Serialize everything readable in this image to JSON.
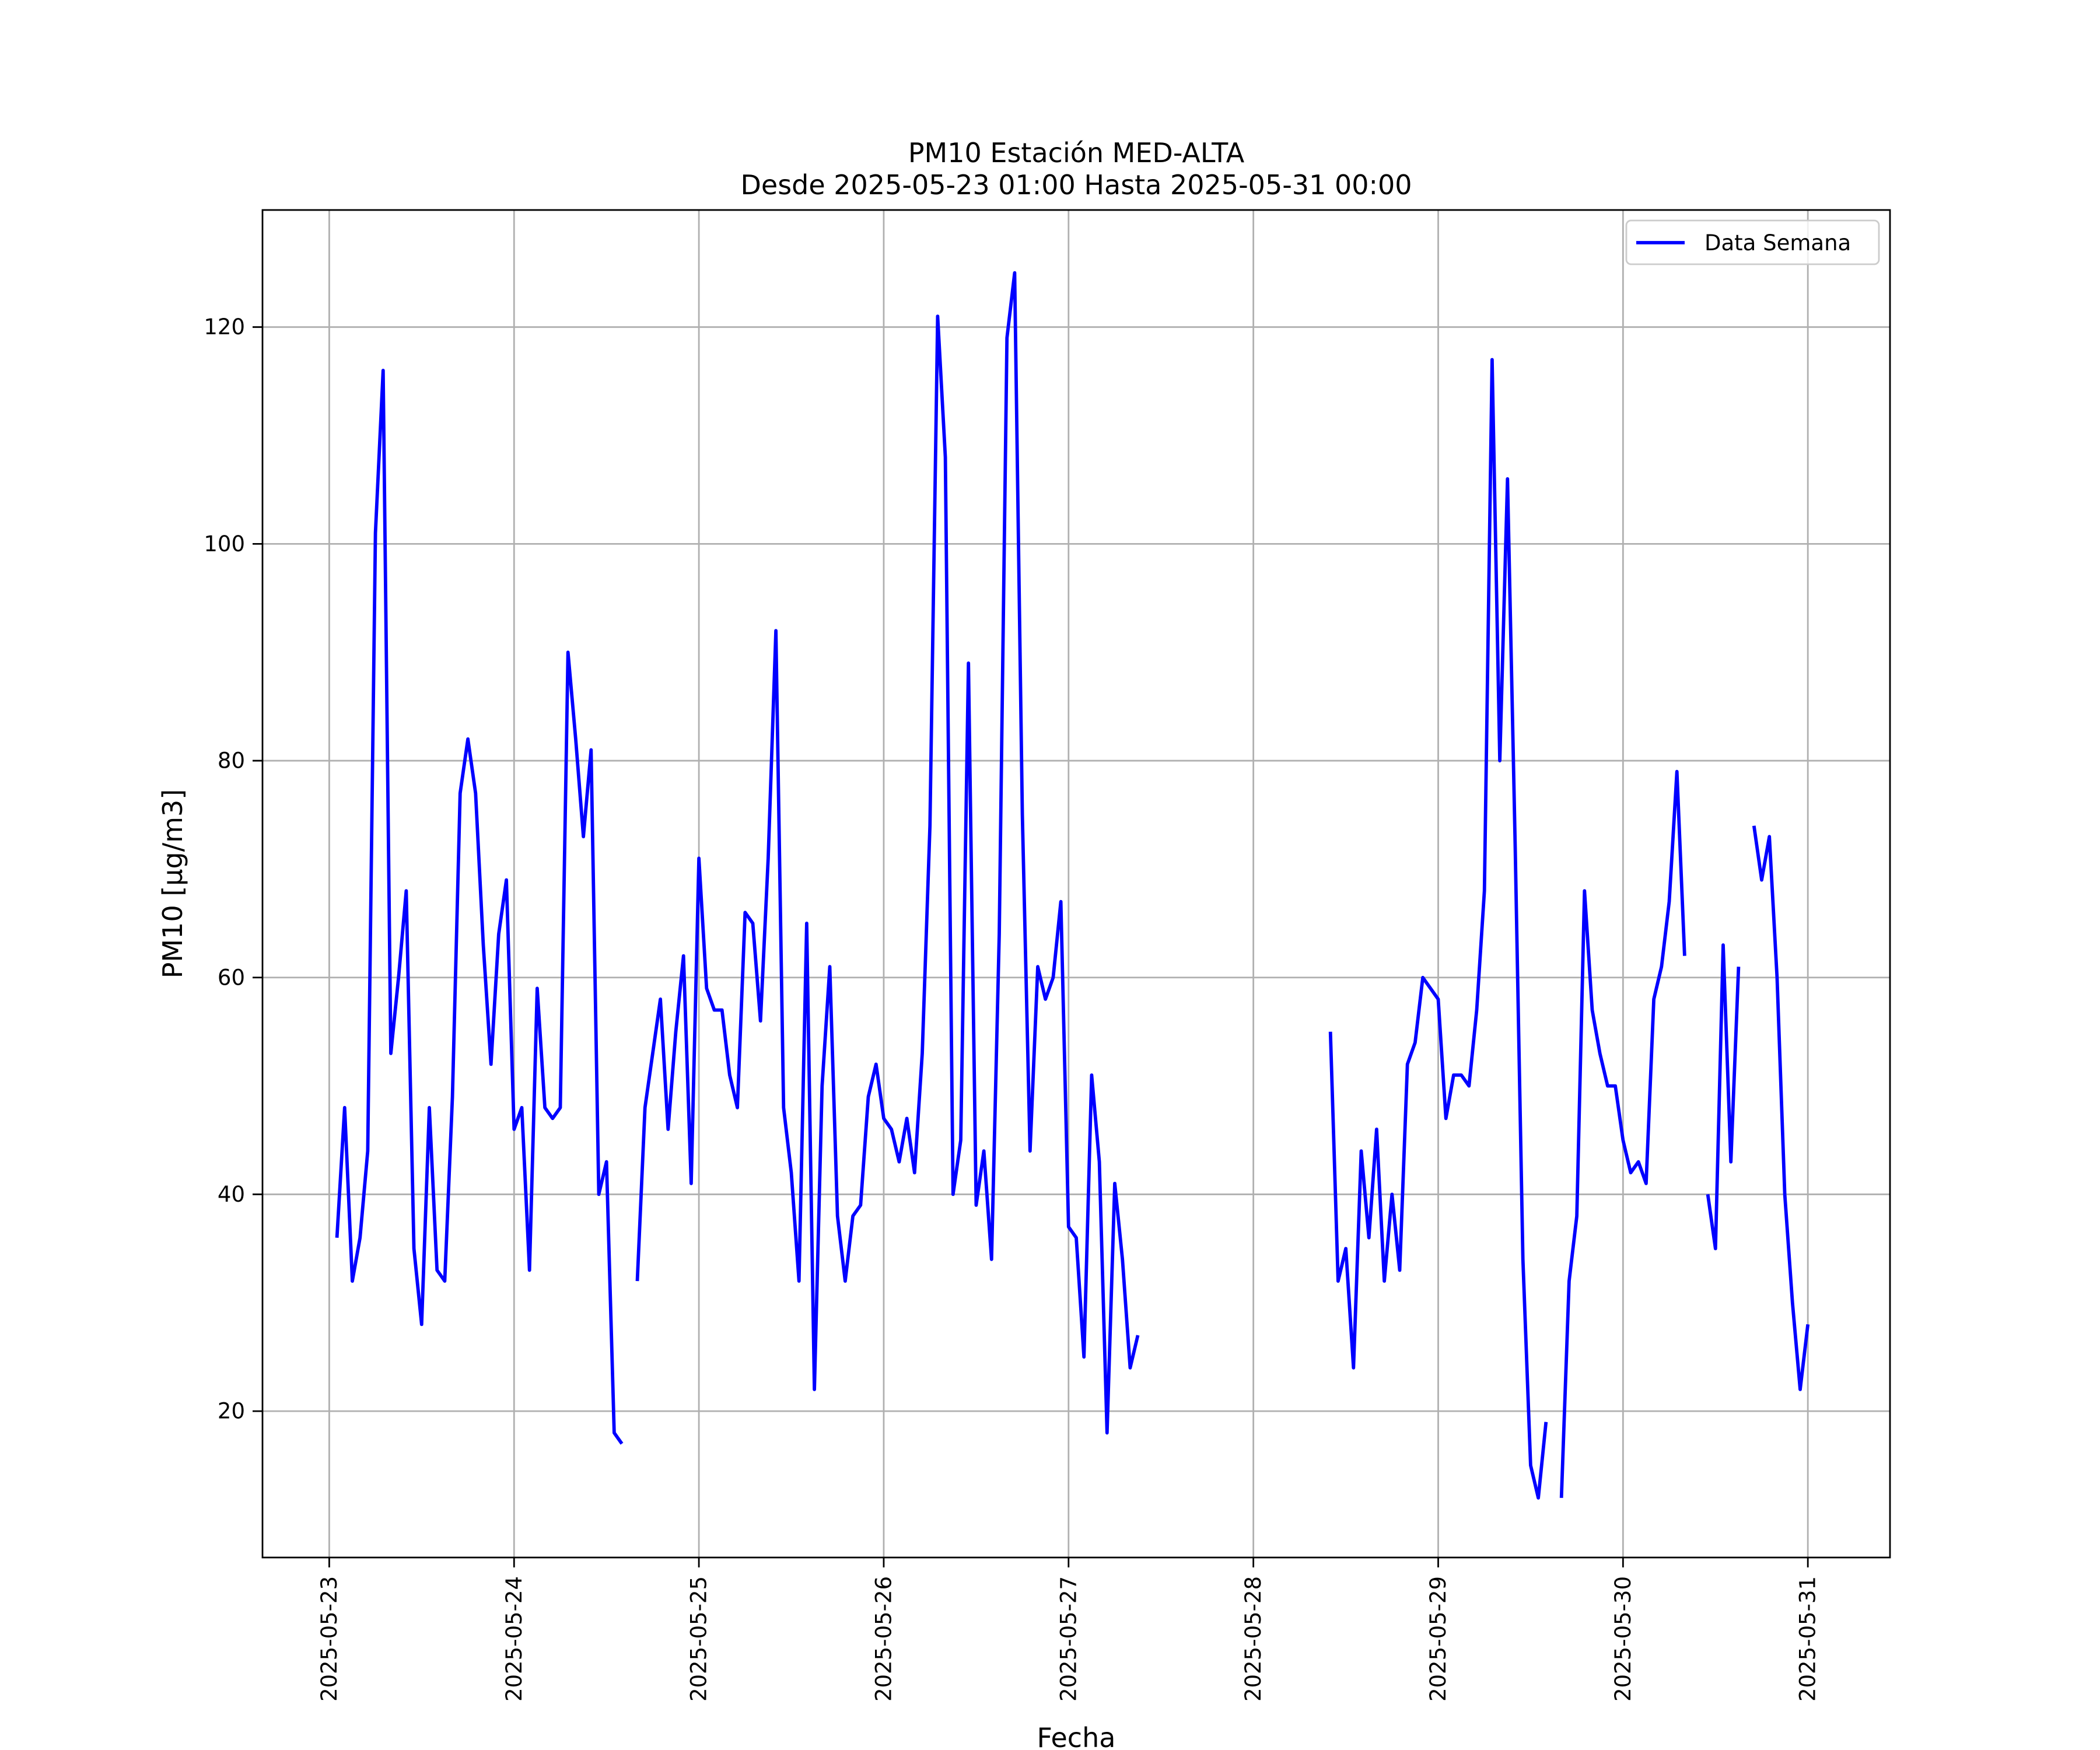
{
  "chart_data": {
    "type": "line",
    "title": "PM10 Estación MED-ALTA",
    "subtitle": "Desde 2025-05-23 01:00 Hasta 2025-05-31 00:00",
    "xlabel": "Fecha",
    "ylabel": "PM10 [μg/m3]",
    "xlim": [
      "2025-05-22 15:20",
      "2025-05-31 10:40"
    ],
    "ylim": [
      6.5,
      130.8
    ],
    "x_ticks": [
      "2025-05-23",
      "2025-05-24",
      "2025-05-25",
      "2025-05-26",
      "2025-05-27",
      "2025-05-28",
      "2025-05-29",
      "2025-05-30",
      "2025-05-31"
    ],
    "y_ticks": [
      20,
      40,
      60,
      80,
      100,
      120
    ],
    "grid": true,
    "legend_position": "top-right",
    "colors": {
      "series": "#0000ff",
      "grid": "#b0b0b0"
    },
    "series": [
      {
        "name": "Data Semana",
        "color": "#0000ff",
        "points": [
          [
            "2025-05-23 01:00",
            36
          ],
          [
            "2025-05-23 02:00",
            48
          ],
          [
            "2025-05-23 03:00",
            32
          ],
          [
            "2025-05-23 04:00",
            36
          ],
          [
            "2025-05-23 05:00",
            44
          ],
          [
            "2025-05-23 06:00",
            101
          ],
          [
            "2025-05-23 07:00",
            116
          ],
          [
            "2025-05-23 08:00",
            53
          ],
          [
            "2025-05-23 09:00",
            60
          ],
          [
            "2025-05-23 10:00",
            68
          ],
          [
            "2025-05-23 11:00",
            35
          ],
          [
            "2025-05-23 12:00",
            28
          ],
          [
            "2025-05-23 13:00",
            48
          ],
          [
            "2025-05-23 14:00",
            33
          ],
          [
            "2025-05-23 15:00",
            32
          ],
          [
            "2025-05-23 16:00",
            49
          ],
          [
            "2025-05-23 17:00",
            77
          ],
          [
            "2025-05-23 18:00",
            82
          ],
          [
            "2025-05-23 19:00",
            77
          ],
          [
            "2025-05-23 20:00",
            63
          ],
          [
            "2025-05-23 21:00",
            52
          ],
          [
            "2025-05-23 22:00",
            64
          ],
          [
            "2025-05-23 23:00",
            69
          ],
          [
            "2025-05-24 00:00",
            46
          ],
          [
            "2025-05-24 01:00",
            48
          ],
          [
            "2025-05-24 02:00",
            33
          ],
          [
            "2025-05-24 03:00",
            59
          ],
          [
            "2025-05-24 04:00",
            48
          ],
          [
            "2025-05-24 05:00",
            47
          ],
          [
            "2025-05-24 06:00",
            48
          ],
          [
            "2025-05-24 07:00",
            90
          ],
          [
            "2025-05-24 08:00",
            82
          ],
          [
            "2025-05-24 09:00",
            73
          ],
          [
            "2025-05-24 10:00",
            81
          ],
          [
            "2025-05-24 11:00",
            40
          ],
          [
            "2025-05-24 12:00",
            43
          ],
          [
            "2025-05-24 13:00",
            18
          ],
          [
            "2025-05-24 14:00",
            17
          ],
          [
            "2025-05-24 15:00",
            null
          ],
          [
            "2025-05-24 16:00",
            32
          ],
          [
            "2025-05-24 17:00",
            48
          ],
          [
            "2025-05-24 18:00",
            53
          ],
          [
            "2025-05-24 19:00",
            58
          ],
          [
            "2025-05-24 20:00",
            46
          ],
          [
            "2025-05-24 21:00",
            55
          ],
          [
            "2025-05-24 22:00",
            62
          ],
          [
            "2025-05-24 23:00",
            41
          ],
          [
            "2025-05-25 00:00",
            71
          ],
          [
            "2025-05-25 01:00",
            59
          ],
          [
            "2025-05-25 02:00",
            57
          ],
          [
            "2025-05-25 03:00",
            57
          ],
          [
            "2025-05-25 04:00",
            51
          ],
          [
            "2025-05-25 05:00",
            48
          ],
          [
            "2025-05-25 06:00",
            66
          ],
          [
            "2025-05-25 07:00",
            65
          ],
          [
            "2025-05-25 08:00",
            56
          ],
          [
            "2025-05-25 09:00",
            71
          ],
          [
            "2025-05-25 10:00",
            92
          ],
          [
            "2025-05-25 11:00",
            48
          ],
          [
            "2025-05-25 12:00",
            42
          ],
          [
            "2025-05-25 13:00",
            32
          ],
          [
            "2025-05-25 14:00",
            65
          ],
          [
            "2025-05-25 15:00",
            22
          ],
          [
            "2025-05-25 16:00",
            50
          ],
          [
            "2025-05-25 17:00",
            61
          ],
          [
            "2025-05-25 18:00",
            38
          ],
          [
            "2025-05-25 19:00",
            32
          ],
          [
            "2025-05-25 20:00",
            38
          ],
          [
            "2025-05-25 21:00",
            39
          ],
          [
            "2025-05-25 22:00",
            49
          ],
          [
            "2025-05-25 23:00",
            52
          ],
          [
            "2025-05-26 00:00",
            47
          ],
          [
            "2025-05-26 01:00",
            46
          ],
          [
            "2025-05-26 02:00",
            43
          ],
          [
            "2025-05-26 03:00",
            47
          ],
          [
            "2025-05-26 04:00",
            42
          ],
          [
            "2025-05-26 05:00",
            53
          ],
          [
            "2025-05-26 06:00",
            74
          ],
          [
            "2025-05-26 07:00",
            121
          ],
          [
            "2025-05-26 08:00",
            108
          ],
          [
            "2025-05-26 09:00",
            40
          ],
          [
            "2025-05-26 10:00",
            45
          ],
          [
            "2025-05-26 11:00",
            89
          ],
          [
            "2025-05-26 12:00",
            39
          ],
          [
            "2025-05-26 13:00",
            44
          ],
          [
            "2025-05-26 14:00",
            34
          ],
          [
            "2025-05-26 15:00",
            64
          ],
          [
            "2025-05-26 16:00",
            119
          ],
          [
            "2025-05-26 17:00",
            125
          ],
          [
            "2025-05-26 18:00",
            75
          ],
          [
            "2025-05-26 19:00",
            44
          ],
          [
            "2025-05-26 20:00",
            61
          ],
          [
            "2025-05-26 21:00",
            58
          ],
          [
            "2025-05-26 22:00",
            60
          ],
          [
            "2025-05-26 23:00",
            67
          ],
          [
            "2025-05-27 00:00",
            37
          ],
          [
            "2025-05-27 01:00",
            36
          ],
          [
            "2025-05-27 02:00",
            25
          ],
          [
            "2025-05-27 03:00",
            51
          ],
          [
            "2025-05-27 04:00",
            43
          ],
          [
            "2025-05-27 05:00",
            18
          ],
          [
            "2025-05-27 06:00",
            41
          ],
          [
            "2025-05-27 07:00",
            34
          ],
          [
            "2025-05-27 08:00",
            24
          ],
          [
            "2025-05-27 09:00",
            27
          ],
          [
            "2025-05-27 10:00",
            null
          ],
          [
            "2025-05-28 10:00",
            55
          ],
          [
            "2025-05-28 11:00",
            32
          ],
          [
            "2025-05-28 12:00",
            35
          ],
          [
            "2025-05-28 13:00",
            24
          ],
          [
            "2025-05-28 14:00",
            44
          ],
          [
            "2025-05-28 15:00",
            36
          ],
          [
            "2025-05-28 16:00",
            46
          ],
          [
            "2025-05-28 17:00",
            32
          ],
          [
            "2025-05-28 18:00",
            40
          ],
          [
            "2025-05-28 19:00",
            33
          ],
          [
            "2025-05-28 20:00",
            52
          ],
          [
            "2025-05-28 21:00",
            54
          ],
          [
            "2025-05-28 22:00",
            60
          ],
          [
            "2025-05-28 23:00",
            59
          ],
          [
            "2025-05-29 00:00",
            58
          ],
          [
            "2025-05-29 01:00",
            47
          ],
          [
            "2025-05-29 02:00",
            51
          ],
          [
            "2025-05-29 03:00",
            51
          ],
          [
            "2025-05-29 04:00",
            50
          ],
          [
            "2025-05-29 05:00",
            57
          ],
          [
            "2025-05-29 06:00",
            68
          ],
          [
            "2025-05-29 07:00",
            117
          ],
          [
            "2025-05-29 08:00",
            80
          ],
          [
            "2025-05-29 09:00",
            106
          ],
          [
            "2025-05-29 10:00",
            72
          ],
          [
            "2025-05-29 11:00",
            34
          ],
          [
            "2025-05-29 12:00",
            15
          ],
          [
            "2025-05-29 13:00",
            12
          ],
          [
            "2025-05-29 14:00",
            19
          ],
          [
            "2025-05-29 15:00",
            null
          ],
          [
            "2025-05-29 16:00",
            12
          ],
          [
            "2025-05-29 17:00",
            32
          ],
          [
            "2025-05-29 18:00",
            38
          ],
          [
            "2025-05-29 19:00",
            68
          ],
          [
            "2025-05-29 20:00",
            57
          ],
          [
            "2025-05-29 21:00",
            53
          ],
          [
            "2025-05-29 22:00",
            50
          ],
          [
            "2025-05-29 23:00",
            50
          ],
          [
            "2025-05-30 00:00",
            45
          ],
          [
            "2025-05-30 01:00",
            42
          ],
          [
            "2025-05-30 02:00",
            43
          ],
          [
            "2025-05-30 03:00",
            41
          ],
          [
            "2025-05-30 04:00",
            58
          ],
          [
            "2025-05-30 05:00",
            61
          ],
          [
            "2025-05-30 06:00",
            67
          ],
          [
            "2025-05-30 07:00",
            79
          ],
          [
            "2025-05-30 08:00",
            62
          ],
          [
            "2025-05-30 09:00",
            null
          ],
          [
            "2025-05-30 11:00",
            40
          ],
          [
            "2025-05-30 12:00",
            35
          ],
          [
            "2025-05-30 13:00",
            63
          ],
          [
            "2025-05-30 14:00",
            43
          ],
          [
            "2025-05-30 15:00",
            61
          ],
          [
            "2025-05-30 16:00",
            null
          ],
          [
            "2025-05-30 17:00",
            74
          ],
          [
            "2025-05-30 18:00",
            69
          ],
          [
            "2025-05-30 19:00",
            73
          ],
          [
            "2025-05-30 20:00",
            60
          ],
          [
            "2025-05-30 21:00",
            40
          ],
          [
            "2025-05-30 22:00",
            30
          ],
          [
            "2025-05-30 23:00",
            22
          ],
          [
            "2025-05-31 00:00",
            28
          ]
        ]
      }
    ]
  }
}
